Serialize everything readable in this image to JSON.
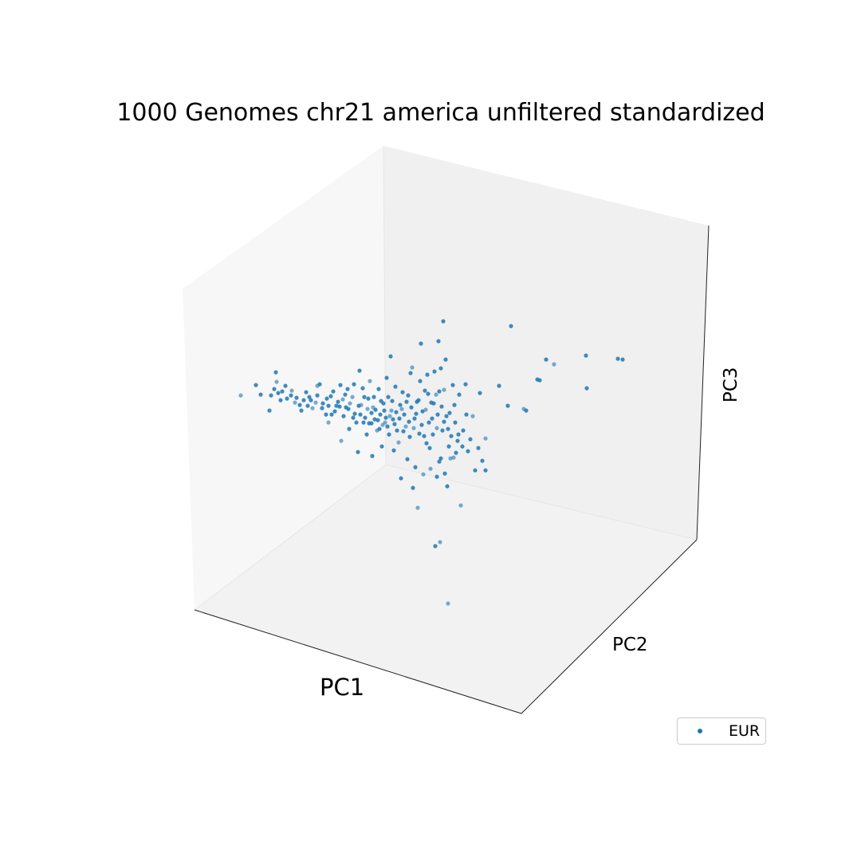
{
  "chart_data": {
    "type": "scatter",
    "projection": "3d",
    "title": "1000 Genomes chr21 america unfiltered standardized",
    "xlabel": "PC1",
    "ylabel": "PC2",
    "zlabel": "PC3",
    "ticks": "hidden",
    "grid": false,
    "legend_placement": "bottom-right",
    "series": [
      {
        "name": "EUR",
        "color": "#1f77b4",
        "note_units": "screen-projected data space of the 3D view (PC1 horizontal, PC3 vertical), approximate",
        "points": [
          [
            302,
            496
          ],
          [
            321,
            483
          ],
          [
            327,
            495
          ],
          [
            338,
            515
          ],
          [
            346,
            467
          ],
          [
            347,
            479
          ],
          [
            349,
            493
          ],
          [
            354,
            491
          ],
          [
            360,
            500
          ],
          [
            365,
            496
          ],
          [
            370,
            505
          ],
          [
            376,
            508
          ],
          [
            381,
            502
          ],
          [
            384,
            492
          ],
          [
            388,
            498
          ],
          [
            392,
            512
          ],
          [
            398,
            496
          ],
          [
            401,
            482
          ],
          [
            405,
            506
          ],
          [
            409,
            520
          ],
          [
            412,
            530
          ],
          [
            415,
            497
          ],
          [
            420,
            516
          ],
          [
            424,
            504
          ],
          [
            427,
            483
          ],
          [
            428,
            553
          ],
          [
            431,
            522
          ],
          [
            434,
            511
          ],
          [
            436,
            488
          ],
          [
            438,
            538
          ],
          [
            442,
            498
          ],
          [
            445,
            519
          ],
          [
            447,
            530
          ],
          [
            449,
            567
          ],
          [
            451,
            465
          ],
          [
            453,
            508
          ],
          [
            455,
            487
          ],
          [
            458,
            524
          ],
          [
            460,
            545
          ],
          [
            462,
            500
          ],
          [
            464,
            478
          ],
          [
            466,
            531
          ],
          [
            467,
            572
          ],
          [
            469,
            498
          ],
          [
            471,
            514
          ],
          [
            473,
            540
          ],
          [
            475,
            488
          ],
          [
            477,
            520
          ],
          [
            479,
            560
          ],
          [
            481,
            506
          ],
          [
            483,
            530
          ],
          [
            485,
            474
          ],
          [
            487,
            498
          ],
          [
            488,
            545
          ],
          [
            490,
            447
          ],
          [
            491,
            515
          ],
          [
            493,
            526
          ],
          [
            494,
            565
          ],
          [
            496,
            485
          ],
          [
            498,
            540
          ],
          [
            500,
            555
          ],
          [
            502,
            508
          ],
          [
            503,
            600
          ],
          [
            505,
            492
          ],
          [
            507,
            520
          ],
          [
            509,
            535
          ],
          [
            511,
            576
          ],
          [
            512,
            496
          ],
          [
            514,
            548
          ],
          [
            515,
            468
          ],
          [
            517,
            461
          ],
          [
            518,
            612
          ],
          [
            520,
            525
          ],
          [
            521,
            586
          ],
          [
            523,
            504
          ],
          [
            524,
            637
          ],
          [
            526,
            544
          ],
          [
            527,
            478
          ],
          [
            528,
            431
          ],
          [
            530,
            516
          ],
          [
            531,
            595
          ],
          [
            533,
            490
          ],
          [
            535,
            556
          ],
          [
            536,
            470
          ],
          [
            538,
            530
          ],
          [
            540,
            588
          ],
          [
            541,
            505
          ],
          [
            543,
            545
          ],
          [
            545,
            466
          ],
          [
            546,
            685
          ],
          [
            547,
            495
          ],
          [
            548,
            598
          ],
          [
            549,
            520
          ],
          [
            550,
            428
          ],
          [
            551,
            579
          ],
          [
            552,
            680
          ],
          [
            553,
            462
          ],
          [
            554,
            510
          ],
          [
            555,
            540
          ],
          [
            556,
            403
          ],
          [
            557,
            489
          ],
          [
            558,
            594
          ],
          [
            559,
            451
          ],
          [
            560,
            522
          ],
          [
            561,
            610
          ],
          [
            562,
            757
          ],
          [
            563,
            560
          ],
          [
            564,
            518
          ],
          [
            566,
            547
          ],
          [
            568,
            483
          ],
          [
            569,
            574
          ],
          [
            571,
            530
          ],
          [
            572,
            568
          ],
          [
            574,
            553
          ],
          [
            576,
            495
          ],
          [
            578,
            634
          ],
          [
            581,
            540
          ],
          [
            584,
            482
          ],
          [
            587,
            566
          ],
          [
            590,
            551
          ],
          [
            593,
            522
          ],
          [
            596,
            590
          ],
          [
            600,
            562
          ],
          [
            602,
            493
          ],
          [
            605,
            578
          ],
          [
            609,
            550
          ],
          [
            609,
            590
          ],
          [
            626,
            484
          ],
          [
            637,
            509
          ],
          [
            641,
            409
          ],
          [
            657,
            513
          ],
          [
            660,
            515
          ],
          [
            674,
            476
          ],
          [
            677,
            477
          ],
          [
            685,
            451
          ],
          [
            695,
            457
          ],
          [
            735,
            446
          ],
          [
            736,
            487
          ],
          [
            775,
            450
          ],
          [
            781,
            451
          ],
          [
            398,
            484
          ],
          [
            412,
            509
          ],
          [
            418,
            491
          ],
          [
            426,
            510
          ],
          [
            433,
            495
          ],
          [
            439,
            506
          ],
          [
            444,
            482
          ],
          [
            452,
            520
          ],
          [
            457,
            498
          ],
          [
            463,
            531
          ],
          [
            468,
            511
          ],
          [
            474,
            527
          ],
          [
            478,
            503
          ],
          [
            482,
            515
          ],
          [
            486,
            535
          ],
          [
            489,
            522
          ],
          [
            492,
            503
          ],
          [
            495,
            532
          ],
          [
            497,
            517
          ],
          [
            501,
            525
          ],
          [
            504,
            513
          ],
          [
            506,
            541
          ],
          [
            510,
            504
          ],
          [
            513,
            529
          ],
          [
            516,
            511
          ],
          [
            519,
            537
          ],
          [
            522,
            519
          ],
          [
            525,
            502
          ],
          [
            529,
            533
          ],
          [
            532,
            547
          ],
          [
            534,
            514
          ],
          [
            537,
            494
          ],
          [
            539,
            562
          ],
          [
            542,
            525
          ],
          [
            544,
            506
          ],
          [
            548,
            537
          ],
          [
            551,
            491
          ],
          [
            553,
            575
          ],
          [
            557,
            529
          ],
          [
            562,
            538
          ],
          [
            565,
            575
          ],
          [
            570,
            508
          ],
          [
            575,
            545
          ],
          [
            580,
            560
          ],
          [
            585,
            520
          ],
          [
            480,
            533
          ],
          [
            484,
            524
          ],
          [
            476,
            538
          ],
          [
            470,
            526
          ],
          [
            466,
            518
          ],
          [
            461,
            513
          ],
          [
            456,
            530
          ],
          [
            450,
            509
          ],
          [
            443,
            524
          ],
          [
            437,
            513
          ],
          [
            430,
            501
          ],
          [
            422,
            509
          ],
          [
            416,
            520
          ],
          [
            410,
            500
          ],
          [
            404,
            512
          ],
          [
            396,
            505
          ],
          [
            390,
            502
          ],
          [
            386,
            509
          ],
          [
            378,
            515
          ],
          [
            372,
            499
          ],
          [
            366,
            490
          ],
          [
            358,
            484
          ],
          [
            352,
            502
          ],
          [
            344,
            488
          ],
          [
            340,
            496
          ]
        ]
      }
    ]
  }
}
